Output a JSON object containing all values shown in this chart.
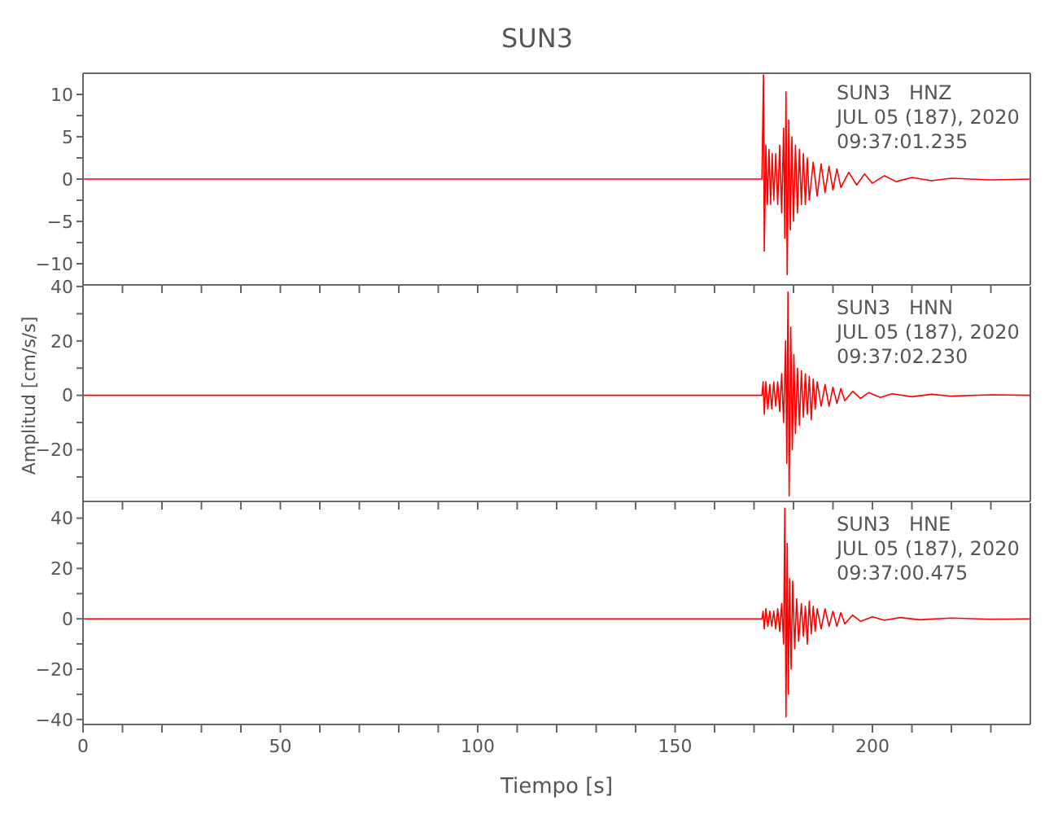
{
  "chart_data": [
    {
      "type": "line",
      "title": "SUN3",
      "tick_labels": "y",
      "xlim": [
        0,
        240
      ],
      "ylim": [
        -12.5,
        12.5
      ],
      "yticks": [
        -10,
        {
          "value": -7.5,
          "label": null
        },
        -5,
        {
          "value": -2.5,
          "label": null
        },
        0,
        {
          "value": 2.5,
          "label": null
        },
        5,
        {
          "value": 7.5,
          "label": null
        },
        10
      ],
      "xticks": [
        0,
        10,
        20,
        30,
        40,
        50,
        60,
        70,
        80,
        90,
        100,
        110,
        120,
        130,
        140,
        150,
        160,
        170,
        180,
        190,
        200,
        210,
        220,
        230
      ],
      "marker": "none",
      "line_style": "solid",
      "annotations": [
        "SUN3   HNZ",
        "JUL 05 (187), 2020",
        "09:37:01.235"
      ],
      "series": [
        {
          "color": "#ff0000",
          "x": [
            0,
            100,
            172,
            172.4,
            172.6,
            173,
            173.4,
            173.8,
            174.2,
            174.6,
            175,
            175.5,
            176,
            176.5,
            177,
            177.5,
            177.8,
            178.1,
            178.4,
            178.8,
            179.2,
            179.6,
            180,
            180.5,
            181,
            181.5,
            182,
            182.5,
            183,
            183.5,
            184,
            185,
            186,
            187,
            188,
            189,
            190,
            191,
            192,
            194,
            196,
            198,
            200,
            203,
            206,
            210,
            215,
            220,
            230,
            240
          ],
          "values": [
            0,
            0,
            0,
            12.3,
            -8.5,
            4,
            -3,
            3.5,
            -3,
            3,
            -2.5,
            3,
            -3,
            4,
            -4,
            6,
            -7,
            10.3,
            -11.3,
            7,
            -6,
            5,
            -5,
            4,
            -4,
            3.5,
            -3,
            3,
            -3,
            2.5,
            -2.5,
            2,
            -2,
            1.8,
            -1.6,
            1.5,
            -1.3,
            1.2,
            -1,
            0.8,
            -0.7,
            0.6,
            -0.5,
            0.4,
            -0.3,
            0.2,
            -0.2,
            0.1,
            -0.1,
            0
          ]
        }
      ]
    },
    {
      "type": "line",
      "ylabel": "Amplitud [cm/s/s]",
      "tick_labels": "y",
      "xlim": [
        0,
        240
      ],
      "ylim": [
        -39,
        40
      ],
      "yticks": [
        {
          "value": -30,
          "label": null
        },
        -20,
        {
          "value": -10,
          "label": null
        },
        0,
        {
          "value": 10,
          "label": null
        },
        20,
        {
          "value": 30,
          "label": null
        },
        40
      ],
      "xticks": [
        0,
        10,
        20,
        30,
        40,
        50,
        60,
        70,
        80,
        90,
        100,
        110,
        120,
        130,
        140,
        150,
        160,
        170,
        180,
        190,
        200,
        210,
        220,
        230
      ],
      "marker": "none",
      "line_style": "solid",
      "annotations": [
        "SUN3   HNN",
        "JUL 05 (187), 2020",
        "09:37:02.230"
      ],
      "series": [
        {
          "color": "#ff0000",
          "x": [
            0,
            172,
            172.3,
            172.6,
            173,
            173.5,
            174,
            174.5,
            175,
            175.5,
            176,
            176.5,
            177,
            177.5,
            178,
            178.3,
            178.6,
            178.9,
            179.3,
            179.7,
            180.1,
            180.5,
            181,
            181.5,
            182,
            182.5,
            183,
            183.5,
            184,
            184.5,
            185,
            185.5,
            186,
            187,
            188,
            189,
            190,
            191,
            192,
            193,
            195,
            197,
            199,
            202,
            205,
            210,
            215,
            220,
            230,
            240
          ],
          "values": [
            0,
            0,
            5,
            -7,
            5,
            -5,
            4,
            -5,
            5,
            -4,
            5,
            -6,
            8,
            -10,
            20,
            -25,
            38,
            -37,
            25,
            -20,
            15,
            -14,
            10,
            -11,
            9,
            -8,
            8,
            -7,
            7,
            -9,
            6,
            -5,
            5,
            -4,
            4,
            -4,
            3,
            -3,
            2.5,
            -2,
            1.5,
            -1.2,
            1,
            -0.8,
            0.6,
            -0.5,
            0.4,
            -0.3,
            0.2,
            0
          ]
        }
      ]
    },
    {
      "type": "line",
      "xlabel": "Tiempo [s]",
      "xlim": [
        0,
        240
      ],
      "ylim": [
        -42,
        46
      ],
      "yticks": [
        -40,
        {
          "value": -30,
          "label": null
        },
        -20,
        {
          "value": -10,
          "label": null
        },
        0,
        {
          "value": 10,
          "label": null
        },
        20,
        {
          "value": 30,
          "label": null
        },
        40
      ],
      "xticks": [
        0,
        {
          "value": 10,
          "label": null
        },
        {
          "value": 20,
          "label": null
        },
        {
          "value": 30,
          "label": null
        },
        {
          "value": 40,
          "label": null
        },
        50,
        {
          "value": 60,
          "label": null
        },
        {
          "value": 70,
          "label": null
        },
        {
          "value": 80,
          "label": null
        },
        {
          "value": 90,
          "label": null
        },
        100,
        {
          "value": 110,
          "label": null
        },
        {
          "value": 120,
          "label": null
        },
        {
          "value": 130,
          "label": null
        },
        {
          "value": 140,
          "label": null
        },
        150,
        {
          "value": 160,
          "label": null
        },
        {
          "value": 170,
          "label": null
        },
        {
          "value": 180,
          "label": null
        },
        {
          "value": 190,
          "label": null
        },
        200,
        {
          "value": 210,
          "label": null
        },
        {
          "value": 220,
          "label": null
        },
        {
          "value": 230,
          "label": null
        }
      ],
      "marker": "none",
      "line_style": "solid",
      "annotations": [
        "SUN3   HNE",
        "JUL 05 (187), 2020",
        "09:37:00.475"
      ],
      "series": [
        {
          "color": "#ff0000",
          "x": [
            0,
            172,
            172.3,
            172.6,
            173,
            173.5,
            174,
            174.5,
            175,
            175.5,
            176,
            176.5,
            177,
            177.5,
            177.8,
            178.1,
            178.4,
            178.7,
            179,
            179.4,
            179.8,
            180.3,
            180.8,
            181.3,
            182,
            182.5,
            183,
            183.5,
            184,
            184.5,
            185,
            185.5,
            186,
            187,
            188,
            189,
            190,
            191,
            192,
            193,
            195,
            197,
            200,
            203,
            207,
            212,
            220,
            230,
            240
          ],
          "values": [
            0,
            0,
            3,
            -4,
            4,
            -3,
            3,
            -3,
            3,
            -4,
            4,
            -5,
            6,
            -10,
            44,
            -39,
            30,
            -30,
            16,
            -20,
            15,
            -12,
            8,
            -9,
            6,
            -7,
            5,
            -10,
            7,
            -6,
            5,
            -5,
            4,
            -4,
            4,
            -3,
            3,
            -3,
            2.5,
            -2,
            1.5,
            -1,
            0.8,
            -0.6,
            0.5,
            -0.4,
            0.3,
            -0.2,
            0
          ]
        }
      ]
    }
  ]
}
